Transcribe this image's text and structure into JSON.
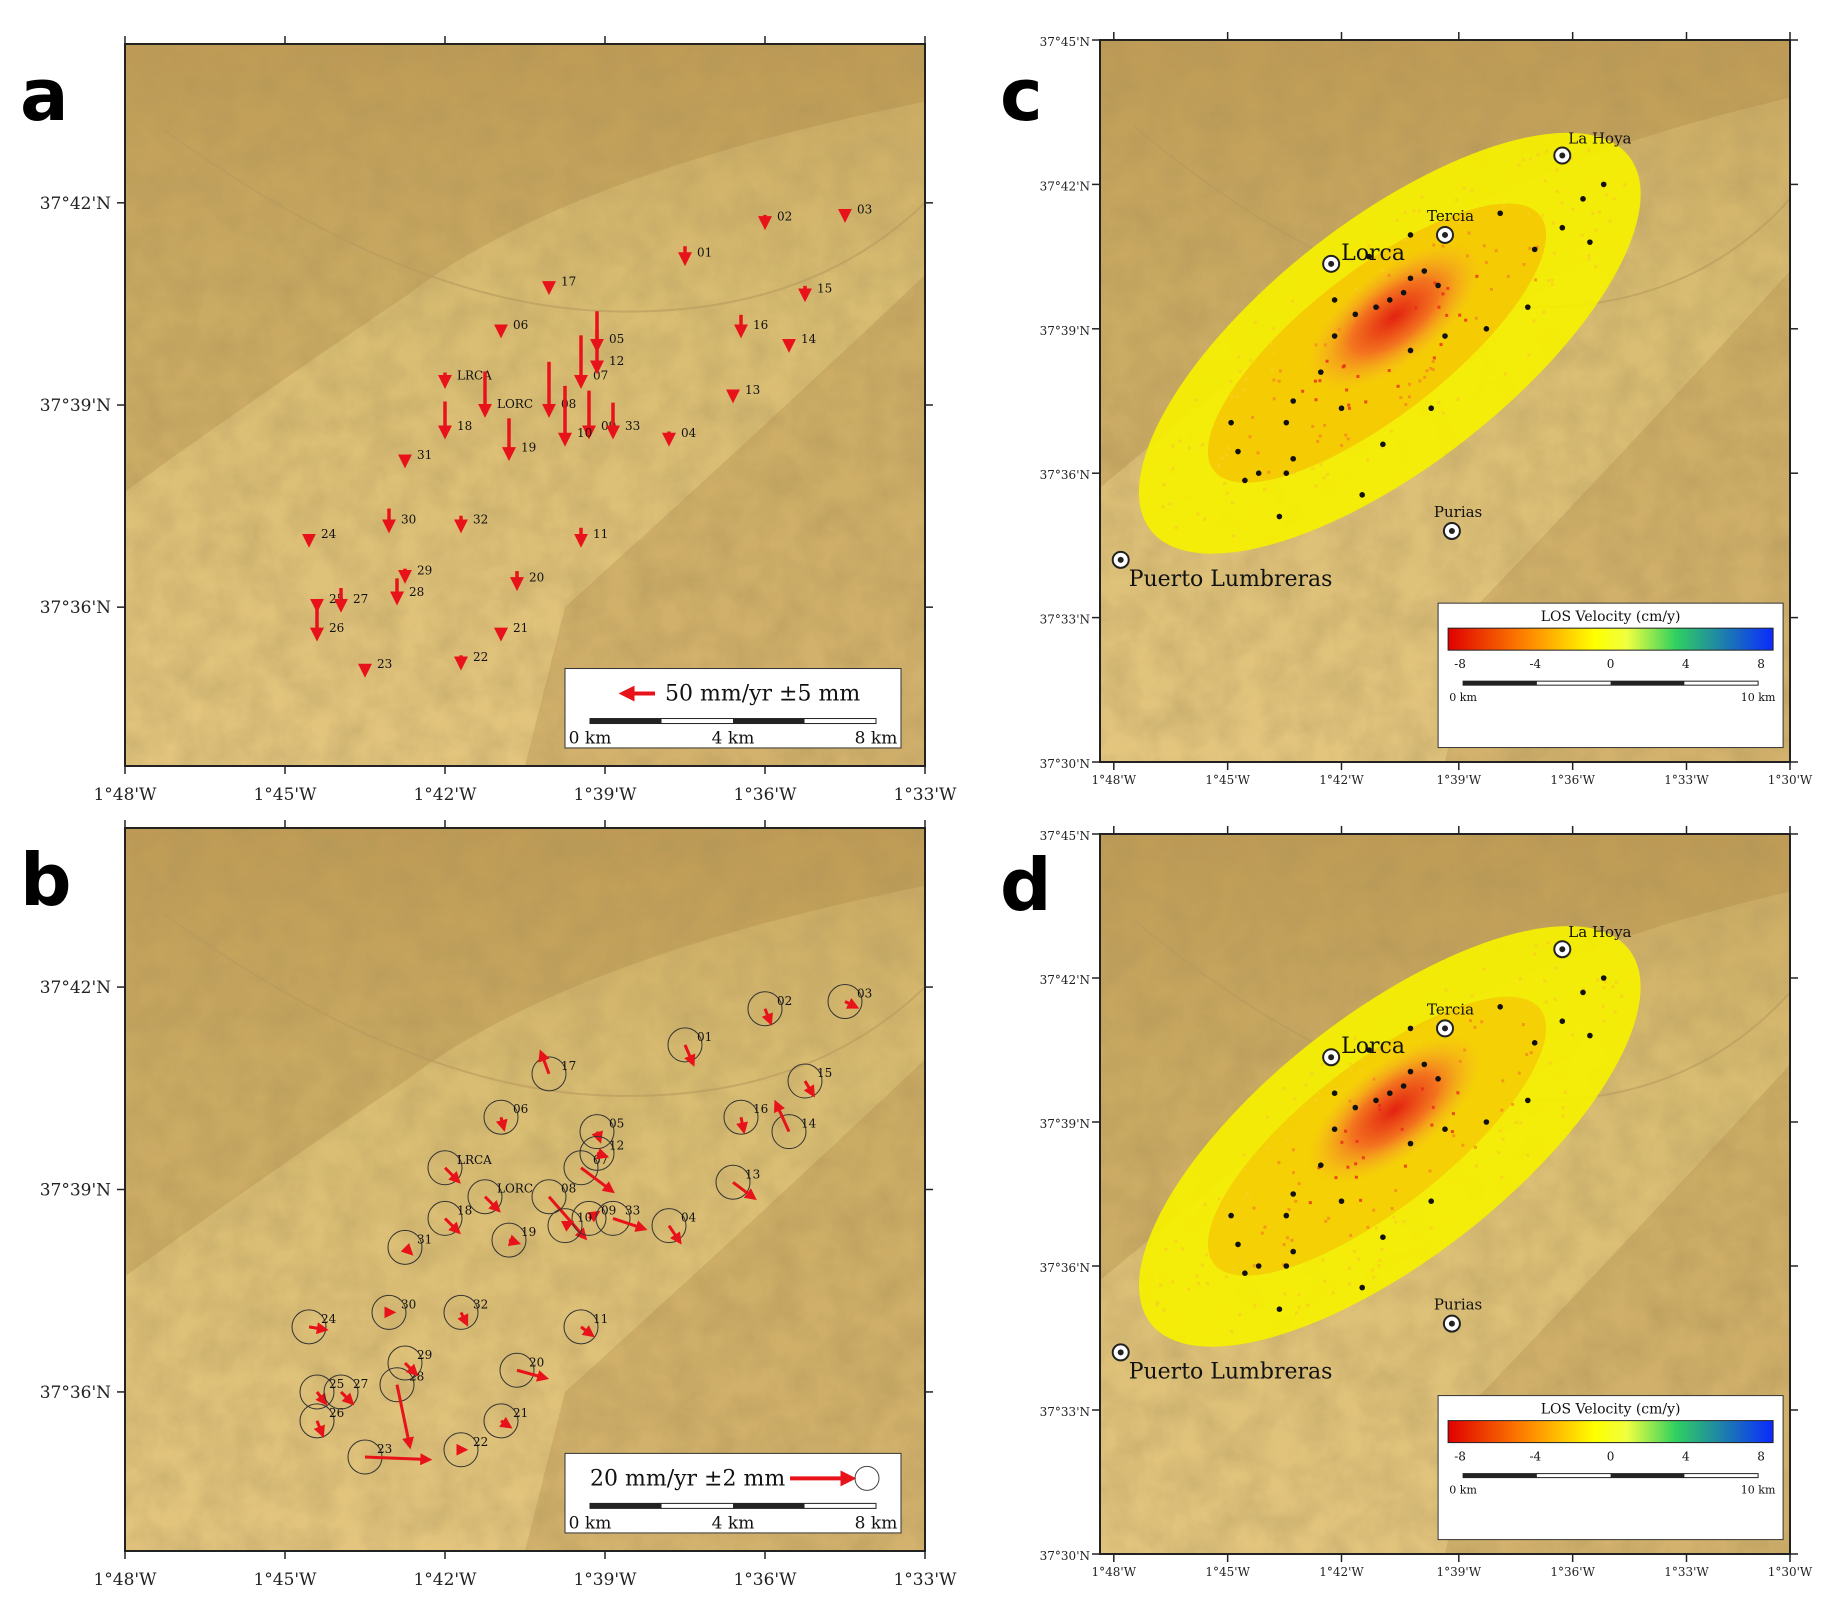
{
  "panels": {
    "a": {
      "label": "a",
      "lon_ticks": [
        "1°48'W",
        "1°45'W",
        "1°42'W",
        "1°39'W",
        "1°36'W",
        "1°33'W"
      ],
      "lat_ticks": [
        "37°42'N",
        "37°39'N",
        "37°36'N"
      ],
      "legend_text": "50 mm/yr ±5 mm",
      "scale": [
        "0 km",
        "4 km",
        "8 km"
      ],
      "stations": [
        {
          "id": "01",
          "vx": 0,
          "vy": -1.2
        },
        {
          "id": "02",
          "vx": 0,
          "vy": -0.8
        },
        {
          "id": "03",
          "vx": 0,
          "vy": -0.3
        },
        {
          "id": "04",
          "vx": 0,
          "vy": -0.8
        },
        {
          "id": "05",
          "vx": 0,
          "vy": -3
        },
        {
          "id": "06",
          "vx": 0,
          "vy": -0.6
        },
        {
          "id": "07",
          "vx": 0,
          "vy": -4
        },
        {
          "id": "08",
          "vx": 0,
          "vy": -4.2
        },
        {
          "id": "09",
          "vx": 0,
          "vy": -3.6
        },
        {
          "id": "10",
          "vx": 0,
          "vy": -4.6
        },
        {
          "id": "11",
          "vx": 0,
          "vy": -1.2
        },
        {
          "id": "12",
          "vx": 0,
          "vy": -3.3
        },
        {
          "id": "13",
          "vx": 0,
          "vy": -0.3
        },
        {
          "id": "14",
          "vx": 0,
          "vy": -0.5
        },
        {
          "id": "15",
          "vx": 0,
          "vy": -0.9
        },
        {
          "id": "16",
          "vx": 0,
          "vy": -1.5
        },
        {
          "id": "17",
          "vx": 0,
          "vy": -0.6
        },
        {
          "id": "18",
          "vx": 0,
          "vy": -2.7
        },
        {
          "id": "19",
          "vx": 0,
          "vy": -3.1
        },
        {
          "id": "20",
          "vx": 0,
          "vy": -1.2
        },
        {
          "id": "21",
          "vx": 0,
          "vy": -0.6
        },
        {
          "id": "22",
          "vx": 0,
          "vy": -0.8
        },
        {
          "id": "23",
          "vx": 0,
          "vy": -0.5
        },
        {
          "id": "24",
          "vx": 0,
          "vy": -0.5
        },
        {
          "id": "25",
          "vx": 0,
          "vy": -0.5
        },
        {
          "id": "26",
          "vx": 0,
          "vy": -2.3
        },
        {
          "id": "27",
          "vx": 0,
          "vy": -1.6
        },
        {
          "id": "28",
          "vx": 0,
          "vy": -1.8
        },
        {
          "id": "29",
          "vx": 0,
          "vy": -0.8
        },
        {
          "id": "30",
          "vx": 0,
          "vy": -1.6
        },
        {
          "id": "31",
          "vx": 0,
          "vy": -0.5
        },
        {
          "id": "32",
          "vx": 0,
          "vy": -1.0
        },
        {
          "id": "33",
          "vx": 0,
          "vy": -2.6
        },
        {
          "id": "LRCA",
          "vx": 0,
          "vy": -0.9
        },
        {
          "id": "LORC",
          "vx": 0,
          "vy": -3.4
        }
      ]
    },
    "b": {
      "label": "b",
      "lon_ticks": [
        "1°48'W",
        "1°45'W",
        "1°42'W",
        "1°39'W",
        "1°36'W",
        "1°33'W"
      ],
      "lat_ticks": [
        "37°42'N",
        "37°39'N",
        "37°36'N"
      ],
      "legend_text": "20 mm/yr ±2 mm",
      "scale": [
        "0 km",
        "4 km",
        "8 km"
      ],
      "stations": [
        {
          "id": "01",
          "vx": 0.3,
          "vy": -0.7
        },
        {
          "id": "02",
          "vx": 0.2,
          "vy": -0.5
        },
        {
          "id": "03",
          "vx": 0.4,
          "vy": -0.2
        },
        {
          "id": "04",
          "vx": 0.4,
          "vy": -0.6
        },
        {
          "id": "05",
          "vx": 0.1,
          "vy": -0.3
        },
        {
          "id": "06",
          "vx": 0.1,
          "vy": -0.4
        },
        {
          "id": "07",
          "vx": 1.2,
          "vy": -0.9
        },
        {
          "id": "08",
          "vx": 1.4,
          "vy": -1.6
        },
        {
          "id": "09",
          "vx": 0.3,
          "vy": 0.2
        },
        {
          "id": "10",
          "vx": 0.2,
          "vy": 0.1
        },
        {
          "id": "11",
          "vx": 0.4,
          "vy": -0.3
        },
        {
          "id": "12",
          "vx": 0.3,
          "vy": -0.1
        },
        {
          "id": "13",
          "vx": 0.8,
          "vy": -0.6
        },
        {
          "id": "14",
          "vx": -0.5,
          "vy": 1.1
        },
        {
          "id": "15",
          "vx": 0.3,
          "vy": -0.5
        },
        {
          "id": "16",
          "vx": 0.1,
          "vy": -0.5
        },
        {
          "id": "17",
          "vx": -0.3,
          "vy": 0.8
        },
        {
          "id": "18",
          "vx": 0.5,
          "vy": -0.5
        },
        {
          "id": "19",
          "vx": 0.3,
          "vy": -0.1
        },
        {
          "id": "20",
          "vx": 1.1,
          "vy": -0.3
        },
        {
          "id": "21",
          "vx": 0.3,
          "vy": -0.2
        },
        {
          "id": "22",
          "vx": 0.1,
          "vy": 0
        },
        {
          "id": "23",
          "vx": 2.5,
          "vy": -0.1
        },
        {
          "id": "24",
          "vx": 0.6,
          "vy": -0.1
        },
        {
          "id": "25",
          "vx": 0.3,
          "vy": -0.4
        },
        {
          "id": "26",
          "vx": 0.2,
          "vy": -0.5
        },
        {
          "id": "27",
          "vx": 0.4,
          "vy": -0.4
        },
        {
          "id": "28",
          "vx": 0.5,
          "vy": -2.4
        },
        {
          "id": "29",
          "vx": 0.4,
          "vy": -0.4
        },
        {
          "id": "30",
          "vx": 0.1,
          "vy": 0
        },
        {
          "id": "31",
          "vx": 0.2,
          "vy": -0.2
        },
        {
          "id": "32",
          "vx": 0.2,
          "vy": -0.4
        },
        {
          "id": "33",
          "vx": 1.2,
          "vy": -0.4
        },
        {
          "id": "LRCA",
          "vx": 0.5,
          "vy": -0.5
        },
        {
          "id": "LORC",
          "vx": 0.5,
          "vy": -0.5
        }
      ]
    },
    "c": {
      "label": "c",
      "lon_ticks": [
        "1°48'W",
        "1°45'W",
        "1°42'W",
        "1°39'W",
        "1°36'W",
        "1°33'W",
        "1°30'W"
      ],
      "lat_ticks": [
        "37°45'N",
        "37°42'N",
        "37°39'N",
        "37°36'N",
        "37°33'N",
        "37°30'N"
      ],
      "cities": [
        "La Hoya",
        "Tercia",
        "Lorca",
        "Purias",
        "Puerto Lumbreras"
      ],
      "colorbar_title": "LOS Velocity (cm/y)",
      "colorbar_ticks": [
        "-8",
        "-4",
        "0",
        "4",
        "8"
      ],
      "scale": [
        "0 km",
        "10 km"
      ]
    },
    "d": {
      "label": "d",
      "lon_ticks": [
        "1°48'W",
        "1°45'W",
        "1°42'W",
        "1°39'W",
        "1°36'W",
        "1°33'W",
        "1°30'W"
      ],
      "lat_ticks": [
        "37°45'N",
        "37°42'N",
        "37°39'N",
        "37°36'N",
        "37°33'N",
        "37°30'N"
      ],
      "cities": [
        "La Hoya",
        "Tercia",
        "Lorca",
        "Purias",
        "Puerto Lumbreras"
      ],
      "colorbar_title": "LOS Velocity (cm/y)",
      "colorbar_ticks": [
        "-8",
        "-4",
        "0",
        "4",
        "8"
      ],
      "scale": [
        "0 km",
        "10 km"
      ]
    }
  },
  "colors": {
    "vector": "#e8121a",
    "terrain": "#d8b86c"
  }
}
